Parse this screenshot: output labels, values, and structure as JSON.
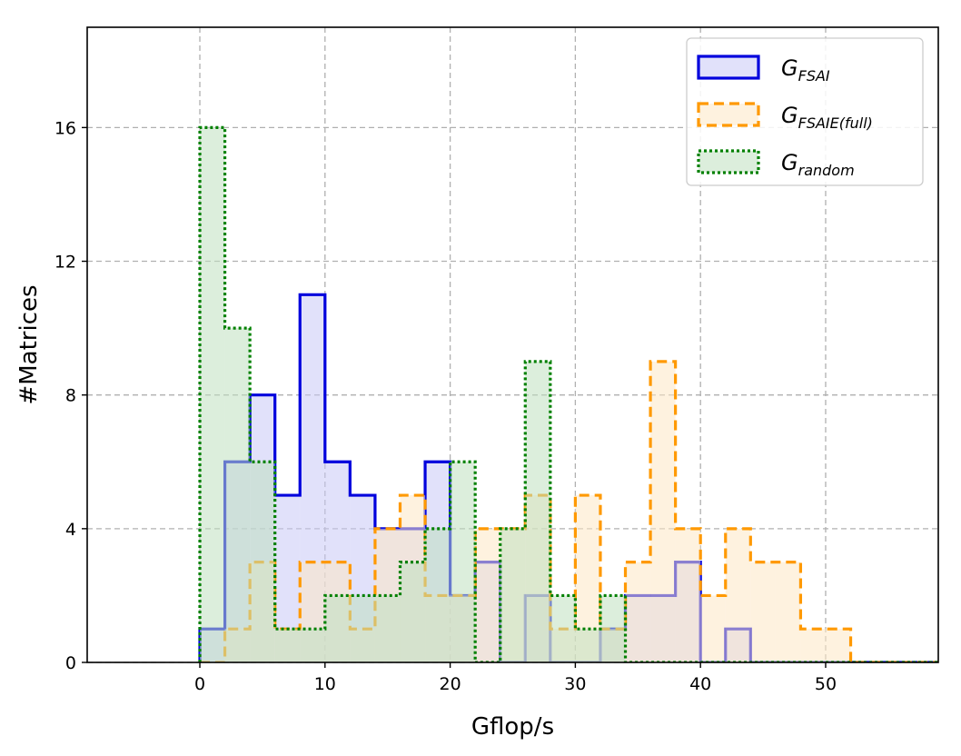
{
  "chart_data": {
    "type": "histogram",
    "xlabel": "Gflop/s",
    "ylabel": "#Matrices",
    "xlim": [
      -9,
      59
    ],
    "ylim": [
      0,
      19
    ],
    "xticks": [
      0,
      10,
      20,
      30,
      40,
      50
    ],
    "yticks": [
      0,
      4,
      8,
      12,
      16
    ],
    "grid": true,
    "legend_position": "top-right",
    "bin_edges": [
      0,
      2,
      4,
      6,
      8,
      10,
      12,
      14,
      16,
      18,
      20,
      22,
      24,
      26,
      28,
      30,
      32,
      34,
      36,
      38,
      40,
      42,
      44,
      46,
      48,
      50,
      52,
      54,
      56,
      58,
      60
    ],
    "series": [
      {
        "name_main": "G",
        "name_sub": "FSAI",
        "style": "solid",
        "color": "#0000dd",
        "fill": "#c8c8f5",
        "counts": [
          1,
          6,
          8,
          5,
          11,
          6,
          5,
          4,
          4,
          6,
          2,
          3,
          0,
          2,
          0,
          0,
          1,
          2,
          2,
          3,
          0,
          1,
          0,
          0,
          0,
          0,
          0,
          0,
          0,
          0
        ]
      },
      {
        "name_main": "G",
        "name_sub": "FSAIE(full)",
        "style": "dashed",
        "color": "#ff9900",
        "fill": "#fde8c4",
        "counts": [
          0,
          1,
          3,
          1,
          3,
          3,
          1,
          4,
          5,
          2,
          2,
          4,
          4,
          5,
          1,
          5,
          1,
          3,
          9,
          4,
          2,
          4,
          3,
          3,
          1,
          1,
          0,
          0,
          0,
          0
        ]
      },
      {
        "name_main": "G",
        "name_sub": "random",
        "style": "dotted",
        "color": "#008000",
        "fill": "#bfe0bf",
        "counts": [
          16,
          10,
          6,
          1,
          1,
          2,
          2,
          2,
          3,
          4,
          6,
          0,
          4,
          9,
          2,
          1,
          2,
          0,
          0,
          0,
          0,
          0,
          0,
          0,
          0,
          0,
          0,
          0,
          0,
          0
        ]
      }
    ]
  }
}
